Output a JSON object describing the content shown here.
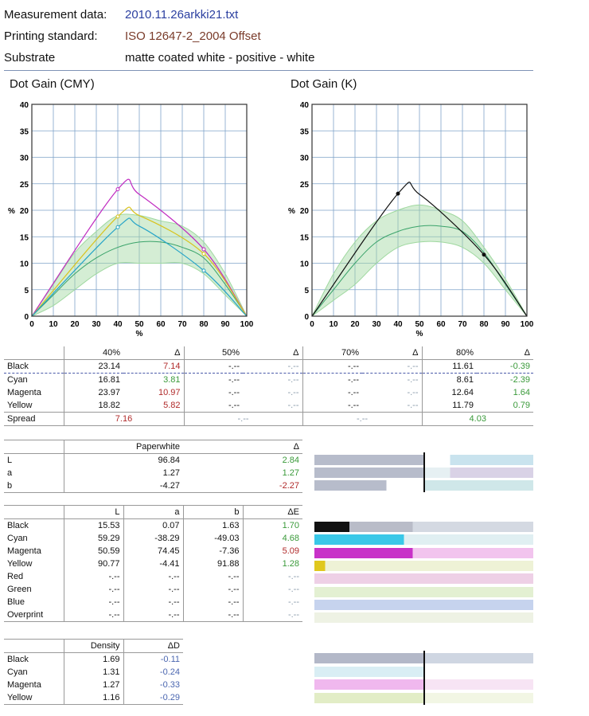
{
  "header": {
    "measurement_label": "Measurement data:",
    "measurement_value": "2010.11.26arkki21.txt",
    "standard_label": "Printing standard:",
    "standard_value": "ISO 12647-2_2004 Offset",
    "substrate_label": "Substrate",
    "substrate_value": "matte coated white - positive - white"
  },
  "charts": {
    "cmy_title": "Dot Gain (CMY)",
    "k_title": "Dot Gain (K)",
    "y_ticks": [
      "0",
      "5",
      "10",
      "15",
      "20",
      "25",
      "30",
      "35",
      "40"
    ],
    "x_ticks": [
      "0",
      "10",
      "20",
      "30",
      "40",
      "50",
      "60",
      "70",
      "80",
      "90",
      "100"
    ],
    "y_unit": "%",
    "x_unit": "%"
  },
  "chart_data": [
    {
      "type": "line",
      "title": "Dot Gain (CMY)",
      "xlabel": "%",
      "ylabel": "%",
      "xlim": [
        0,
        100
      ],
      "ylim": [
        0,
        40
      ],
      "series": [
        {
          "color": "#c02ac0",
          "x": [
            0,
            40,
            50,
            80,
            100
          ],
          "y": [
            0,
            23.97,
            23.0,
            12.64,
            0
          ]
        },
        {
          "color": "#d8c21a",
          "x": [
            0,
            40,
            50,
            80,
            100
          ],
          "y": [
            0,
            18.82,
            19.0,
            11.79,
            0
          ]
        },
        {
          "color": "#26a4c8",
          "x": [
            0,
            40,
            50,
            80,
            100
          ],
          "y": [
            0,
            16.81,
            17.0,
            8.61,
            0
          ]
        }
      ],
      "tolerance_band": {
        "color": "#9fd89f",
        "x": [
          0,
          10,
          20,
          30,
          40,
          50,
          60,
          70,
          80,
          90,
          100
        ],
        "upper": [
          0,
          6,
          12,
          16,
          19,
          19,
          18,
          17,
          14,
          8,
          0
        ],
        "lower": [
          0,
          2,
          5,
          8,
          10,
          10,
          10,
          10,
          8,
          4,
          0
        ],
        "center": [
          0,
          4,
          8,
          11,
          13,
          14,
          14,
          13,
          11,
          6,
          0
        ]
      }
    },
    {
      "type": "line",
      "title": "Dot Gain (K)",
      "xlabel": "%",
      "ylabel": "%",
      "xlim": [
        0,
        100
      ],
      "ylim": [
        0,
        40
      ],
      "series": [
        {
          "color": "#111111",
          "x": [
            0,
            40,
            50,
            80,
            100
          ],
          "y": [
            0,
            23.14,
            23.0,
            11.61,
            0
          ]
        }
      ],
      "tolerance_band": {
        "color": "#9fd89f",
        "x": [
          0,
          10,
          20,
          30,
          40,
          50,
          60,
          70,
          80,
          90,
          100
        ],
        "upper": [
          0,
          8,
          14,
          18,
          20,
          21,
          20,
          18,
          13,
          7,
          0
        ],
        "lower": [
          0,
          3,
          6,
          10,
          13,
          14,
          14,
          13,
          10,
          5,
          0
        ],
        "center": [
          0,
          5,
          10,
          14,
          16,
          17,
          17,
          16,
          12,
          6,
          0
        ]
      }
    }
  ],
  "dotgain_table": {
    "headers": [
      "40%",
      "Δ",
      "50%",
      "Δ",
      "70%",
      "Δ",
      "80%",
      "Δ"
    ],
    "rows": [
      {
        "name": "Black",
        "v40": "23.14",
        "d40": "7.14",
        "v50": "-.--",
        "d50": "-.--",
        "v70": "-.--",
        "d70": "-.--",
        "v80": "11.61",
        "d80": "-0.39"
      },
      {
        "name": "Cyan",
        "v40": "16.81",
        "d40": "3.81",
        "v50": "-.--",
        "d50": "-.--",
        "v70": "-.--",
        "d70": "-.--",
        "v80": "8.61",
        "d80": "-2.39"
      },
      {
        "name": "Magenta",
        "v40": "23.97",
        "d40": "10.97",
        "v50": "-.--",
        "d50": "-.--",
        "v70": "-.--",
        "d70": "-.--",
        "v80": "12.64",
        "d80": "1.64"
      },
      {
        "name": "Yellow",
        "v40": "18.82",
        "d40": "5.82",
        "v50": "-.--",
        "d50": "-.--",
        "v70": "-.--",
        "d70": "-.--",
        "v80": "11.79",
        "d80": "0.79"
      }
    ],
    "spread": {
      "label": "Spread",
      "s40": "7.16",
      "s50": "-.--",
      "s70": "-.--",
      "s80": "4.03"
    }
  },
  "paper_table": {
    "headers": [
      "Paperwhite",
      "Δ"
    ],
    "rows": [
      {
        "name": "L",
        "value": "96.84",
        "delta": "2.84"
      },
      {
        "name": "a",
        "value": "1.27",
        "delta": "1.27"
      },
      {
        "name": "b",
        "value": "-4.27",
        "delta": "-2.27"
      }
    ]
  },
  "lab_table": {
    "headers": [
      "L",
      "a",
      "b",
      "ΔE"
    ],
    "rows": [
      {
        "name": "Black",
        "L": "15.53",
        "a": "0.07",
        "b": "1.63",
        "dE": "1.70"
      },
      {
        "name": "Cyan",
        "L": "59.29",
        "a": "-38.29",
        "b": "-49.03",
        "dE": "4.68"
      },
      {
        "name": "Magenta",
        "L": "50.59",
        "a": "74.45",
        "b": "-7.36",
        "dE": "5.09"
      },
      {
        "name": "Yellow",
        "L": "90.77",
        "a": "-4.41",
        "b": "91.88",
        "dE": "1.28"
      },
      {
        "name": "Red",
        "L": "-.--",
        "a": "-.--",
        "b": "-.--",
        "dE": "-.--"
      },
      {
        "name": "Green",
        "L": "-.--",
        "a": "-.--",
        "b": "-.--",
        "dE": "-.--"
      },
      {
        "name": "Blue",
        "L": "-.--",
        "a": "-.--",
        "b": "-.--",
        "dE": "-.--"
      },
      {
        "name": "Overprint",
        "L": "-.--",
        "a": "-.--",
        "b": "-.--",
        "dE": "-.--"
      }
    ]
  },
  "density_table": {
    "headers": [
      "Density",
      "ΔD"
    ],
    "rows": [
      {
        "name": "Black",
        "density": "1.69",
        "dD": "-0.11"
      },
      {
        "name": "Cyan",
        "density": "1.31",
        "dD": "-0.24"
      },
      {
        "name": "Magenta",
        "density": "1.27",
        "dD": "-0.33"
      },
      {
        "name": "Yellow",
        "density": "1.16",
        "dD": "-0.29"
      }
    ]
  },
  "colors": {
    "magenta": "#c02ac0",
    "yellow": "#d8c21a",
    "cyan": "#26a4c8",
    "black": "#111111",
    "band": "#9fd89f",
    "grid": "#7fa3c9",
    "rule": "#7f93b6"
  }
}
